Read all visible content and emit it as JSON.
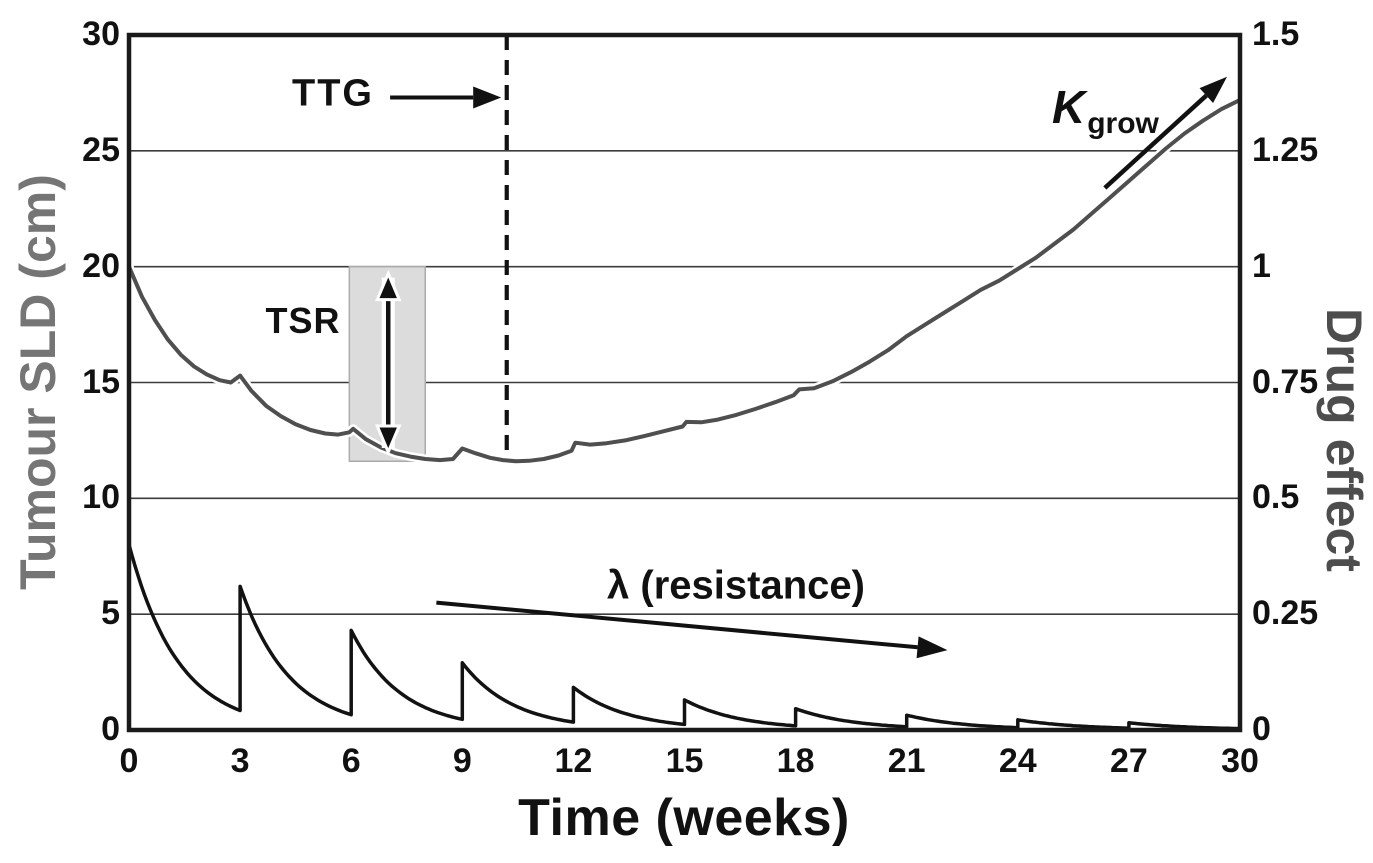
{
  "figure": {
    "background": "#ffffff",
    "x_axis": {
      "title": "Time (weeks)",
      "min": 0,
      "max": 30,
      "tick_values": [
        0,
        3,
        6,
        9,
        12,
        15,
        18,
        21,
        24,
        27,
        30
      ],
      "tick_labels": [
        "0",
        "3",
        "6",
        "9",
        "12",
        "15",
        "18",
        "21",
        "24",
        "27",
        "30"
      ]
    },
    "y_axis_left": {
      "title": "Tumour SLD (cm)",
      "min": 0,
      "max": 30,
      "tick_values": [
        0,
        5,
        10,
        15,
        20,
        25,
        30
      ],
      "tick_labels": [
        "0",
        "5",
        "10",
        "15",
        "20",
        "25",
        "30"
      ],
      "title_color": "#757575"
    },
    "y_axis_right": {
      "title": "Drug effect",
      "min": 0,
      "max": 1.5,
      "tick_values": [
        0,
        0.25,
        0.5,
        0.75,
        1,
        1.25,
        1.5
      ],
      "tick_labels": [
        "0",
        "0.25",
        "0.5",
        "0.75",
        "1",
        "1.25",
        "1.5"
      ],
      "title_color": "#4d4d4d"
    },
    "grid_color": "#3c3c3c",
    "axis_color": "#1a1a1a",
    "tick_label_color": "#111111",
    "annotations": {
      "ttg": {
        "label": "TTG",
        "dashed_line_week": 10.2,
        "dashed_line_top_cm": 30,
        "dashed_line_bottom_cm": 12.0,
        "arrow_from_week_cm": [
          7.05,
          27.3
        ],
        "arrow_to_week_cm": [
          10.05,
          27.3
        ]
      },
      "tsr": {
        "label": "TSR",
        "box_week_range": [
          5.95,
          8.0
        ],
        "box_cm_range": [
          11.6,
          20.0
        ],
        "box_fill": "#dcdcdc",
        "box_border": "#ababab",
        "double_arrow_week": 7.0,
        "double_arrow_cm_range": [
          12.0,
          19.7
        ]
      },
      "lambda": {
        "label": "λ (resistance)",
        "arrow_from_week_cm": [
          8.3,
          5.5
        ],
        "arrow_to_week_cm": [
          22.1,
          3.45
        ]
      },
      "kgrow": {
        "label_main": "K",
        "label_sub": "grow",
        "arrow_from_week_cm": [
          26.35,
          23.4
        ],
        "arrow_to_week_cm": [
          29.65,
          28.2
        ]
      }
    }
  },
  "chart_data": {
    "type": "line",
    "title": "",
    "xlabel": "Time (weeks)",
    "ylabel_left": "Tumour SLD (cm)",
    "ylabel_right": "Drug effect",
    "xlim": [
      0,
      30
    ],
    "ylim_left": [
      0,
      30
    ],
    "ylim_right": [
      0,
      1.5
    ],
    "grid": "horizontal",
    "series": [
      {
        "name": "Tumour SLD",
        "axis": "left",
        "color": "#4f4f4f",
        "style": "solid-scalloped",
        "points_week_cm": [
          [
            0,
            20.0
          ],
          [
            0.35,
            18.7
          ],
          [
            0.7,
            17.7
          ],
          [
            1.05,
            16.85
          ],
          [
            1.4,
            16.2
          ],
          [
            1.75,
            15.7
          ],
          [
            2.1,
            15.35
          ],
          [
            2.45,
            15.1
          ],
          [
            2.75,
            15.0
          ],
          [
            3.0,
            15.3
          ],
          [
            3.3,
            14.65
          ],
          [
            3.7,
            14.0
          ],
          [
            4.1,
            13.55
          ],
          [
            4.5,
            13.2
          ],
          [
            4.9,
            12.95
          ],
          [
            5.3,
            12.8
          ],
          [
            5.65,
            12.75
          ],
          [
            5.95,
            12.85
          ],
          [
            6.05,
            13.0
          ],
          [
            6.4,
            12.55
          ],
          [
            6.8,
            12.2
          ],
          [
            7.2,
            11.95
          ],
          [
            7.6,
            11.8
          ],
          [
            8.0,
            11.7
          ],
          [
            8.4,
            11.65
          ],
          [
            8.75,
            11.7
          ],
          [
            9.0,
            12.15
          ],
          [
            9.35,
            11.95
          ],
          [
            9.75,
            11.75
          ],
          [
            10.1,
            11.65
          ],
          [
            10.45,
            11.6
          ],
          [
            10.8,
            11.62
          ],
          [
            11.2,
            11.7
          ],
          [
            11.6,
            11.85
          ],
          [
            11.95,
            12.05
          ],
          [
            12.05,
            12.4
          ],
          [
            12.45,
            12.32
          ],
          [
            12.9,
            12.38
          ],
          [
            13.4,
            12.5
          ],
          [
            13.9,
            12.68
          ],
          [
            14.4,
            12.88
          ],
          [
            14.95,
            13.1
          ],
          [
            15.05,
            13.3
          ],
          [
            15.45,
            13.28
          ],
          [
            15.9,
            13.4
          ],
          [
            16.4,
            13.6
          ],
          [
            16.9,
            13.85
          ],
          [
            17.45,
            14.15
          ],
          [
            17.95,
            14.45
          ],
          [
            18.1,
            14.7
          ],
          [
            18.5,
            14.75
          ],
          [
            19.0,
            15.05
          ],
          [
            19.5,
            15.45
          ],
          [
            20.0,
            15.9
          ],
          [
            20.5,
            16.4
          ],
          [
            21.0,
            17.0
          ],
          [
            21.5,
            17.5
          ],
          [
            22.0,
            18.0
          ],
          [
            22.5,
            18.5
          ],
          [
            23.0,
            19.0
          ],
          [
            23.5,
            19.4
          ],
          [
            24.0,
            19.9
          ],
          [
            24.5,
            20.4
          ],
          [
            25.0,
            21.0
          ],
          [
            25.5,
            21.6
          ],
          [
            26.0,
            22.3
          ],
          [
            26.5,
            23.0
          ],
          [
            27.0,
            23.7
          ],
          [
            27.5,
            24.4
          ],
          [
            28.0,
            25.1
          ],
          [
            28.5,
            25.75
          ],
          [
            29.0,
            26.3
          ],
          [
            29.5,
            26.8
          ],
          [
            30.0,
            27.2
          ]
        ]
      },
      {
        "name": "Drug effect",
        "axis": "right",
        "color": "#121212",
        "style": "sawtooth-exponential-decay",
        "dose_interval_weeks": 3,
        "doses": [
          {
            "week": 0,
            "peak": 0.4,
            "end_trough": 0.042
          },
          {
            "week": 3,
            "peak": 0.31,
            "end_trough": 0.033
          },
          {
            "week": 6,
            "peak": 0.215,
            "end_trough": 0.023
          },
          {
            "week": 9,
            "peak": 0.145,
            "end_trough": 0.017
          },
          {
            "week": 12,
            "peak": 0.092,
            "end_trough": 0.012
          },
          {
            "week": 15,
            "peak": 0.065,
            "end_trough": 0.009
          },
          {
            "week": 18,
            "peak": 0.046,
            "end_trough": 0.007
          },
          {
            "week": 21,
            "peak": 0.032,
            "end_trough": 0.005
          },
          {
            "week": 24,
            "peak": 0.022,
            "end_trough": 0.004
          },
          {
            "week": 27,
            "peak": 0.0155,
            "end_trough": 0.003
          }
        ]
      }
    ]
  }
}
